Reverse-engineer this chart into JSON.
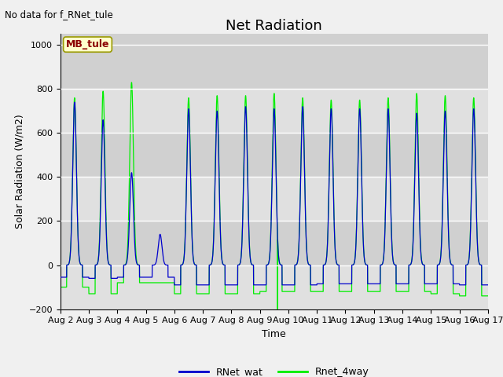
{
  "title": "Net Radiation",
  "ylabel": "Solar Radiation (W/m2)",
  "xlabel": "Time",
  "no_data_text": "No data for f_RNet_tule",
  "annotation_text": "MB_tule",
  "ylim": [
    -200,
    1050
  ],
  "yticks": [
    -200,
    0,
    200,
    400,
    600,
    800,
    1000
  ],
  "line1_color": "#0000cc",
  "line2_color": "#00ee00",
  "line1_label": "RNet_wat",
  "line2_label": "Rnet_4way",
  "plot_bg_color": "#e8e8e8",
  "fig_bg_color": "#f0f0f0",
  "n_days": 15,
  "start_day": 2,
  "points_per_day": 288,
  "day_peaks_wat": [
    740,
    660,
    420,
    140,
    710,
    700,
    720,
    710,
    720,
    710,
    710,
    710,
    690,
    700,
    710
  ],
  "day_peaks_4way": [
    760,
    790,
    830,
    0,
    760,
    770,
    770,
    780,
    760,
    750,
    750,
    760,
    780,
    770,
    760
  ],
  "day_troughs_wat": [
    -55,
    -60,
    -55,
    -55,
    -90,
    -90,
    -90,
    -90,
    -90,
    -85,
    -85,
    -85,
    -85,
    -85,
    -90
  ],
  "day_troughs_4way": [
    -100,
    -130,
    -80,
    -80,
    -130,
    -130,
    -130,
    -120,
    -120,
    -120,
    -120,
    -120,
    -120,
    -130,
    -140
  ],
  "spike_day": 7,
  "spike_value": -230,
  "title_fontsize": 13,
  "label_fontsize": 9,
  "tick_fontsize": 8,
  "legend_fontsize": 9,
  "stripe_colors": [
    "#d8d8d8",
    "#e8e8e8"
  ],
  "stripe_ranges": [
    [
      -200,
      0
    ],
    [
      0,
      200
    ],
    [
      200,
      400
    ],
    [
      400,
      600
    ],
    [
      600,
      800
    ],
    [
      800,
      1050
    ]
  ]
}
